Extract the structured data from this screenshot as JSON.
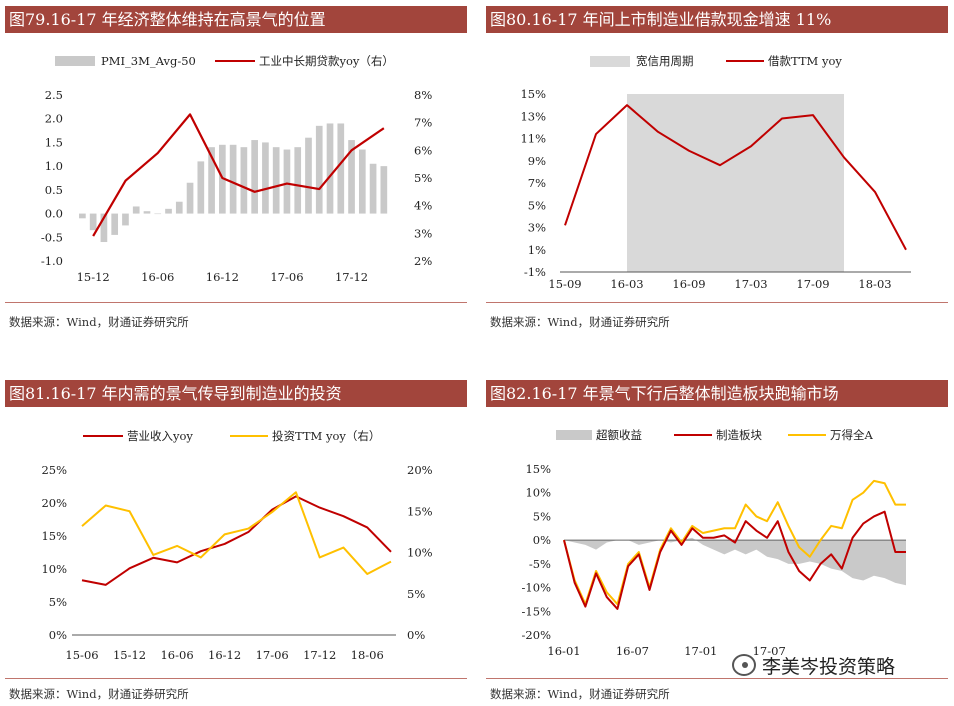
{
  "panels": [
    {
      "title": "图79.16-17 年经济整体维持在高景气的位置",
      "source": "数据来源：Wind，财通证券研究所",
      "chart_data": {
        "type": "bar+line",
        "x": [
          "2015-11",
          "2015-12",
          "2016-01",
          "2016-02",
          "2016-03",
          "2016-04",
          "2016-05",
          "2016-06",
          "2016-07",
          "2016-08",
          "2016-09",
          "2016-10",
          "2016-11",
          "2016-12",
          "2017-01",
          "2017-02",
          "2017-03",
          "2017-04",
          "2017-05",
          "2017-06",
          "2017-07",
          "2017-08",
          "2017-09",
          "2017-10",
          "2017-11",
          "2017-12",
          "2018-01",
          "2018-02",
          "2018-03",
          "2018-04"
        ],
        "x_ticks": [
          "15-12",
          "16-06",
          "16-12",
          "17-06",
          "17-12"
        ],
        "left_axis": {
          "ticks": [
            "-1.0",
            "-0.5",
            "0.0",
            "0.5",
            "1.0",
            "1.5",
            "2.0",
            "2.5"
          ],
          "ylim": [
            -1.0,
            2.5
          ]
        },
        "right_axis": {
          "ticks": [
            "2%",
            "3%",
            "4%",
            "5%",
            "6%",
            "7%",
            "8%"
          ],
          "ylim": [
            2,
            8
          ]
        },
        "series": [
          {
            "name": "PMI_3M_Avg-50",
            "kind": "bar",
            "axis": "left",
            "color": "#c9c9c9",
            "values": [
              -0.1,
              -0.35,
              -0.6,
              -0.45,
              -0.25,
              0.15,
              0.05,
              0.0,
              0.1,
              0.25,
              0.65,
              1.1,
              1.4,
              1.45,
              1.45,
              1.4,
              1.55,
              1.5,
              1.4,
              1.35,
              1.4,
              1.6,
              1.85,
              1.9,
              1.9,
              1.55,
              1.35,
              1.05,
              1.0,
              null
            ]
          },
          {
            "name": "工业中长期贷款yoy（右）",
            "kind": "line",
            "axis": "right",
            "color": "#c00000",
            "x": [
              "2015-12",
              "2016-03",
              "2016-06",
              "2016-09",
              "2016-12",
              "2017-03",
              "2017-06",
              "2017-09",
              "2017-12",
              "2018-03"
            ],
            "values": [
              2.9,
              4.9,
              5.9,
              7.3,
              5.0,
              4.5,
              4.8,
              4.6,
              6.0,
              6.8
            ]
          }
        ]
      }
    },
    {
      "title": "图80.16-17 年间上市制造业借款现金增速 11%",
      "source": "数据来源：Wind，财通证券研究所",
      "chart_data": {
        "type": "line",
        "x": [
          "2015-09",
          "2015-12",
          "2016-03",
          "2016-06",
          "2016-09",
          "2016-12",
          "2017-03",
          "2017-06",
          "2017-09",
          "2017-12",
          "2018-03",
          "2018-06"
        ],
        "x_ticks": [
          "15-09",
          "16-03",
          "16-09",
          "17-03",
          "17-09",
          "18-03"
        ],
        "y_ticks": [
          "-1%",
          "1%",
          "3%",
          "5%",
          "7%",
          "9%",
          "11%",
          "13%",
          "15%"
        ],
        "ylim": [
          -1,
          15
        ],
        "shade": {
          "name": "宽信用周期",
          "from": "2016-03",
          "to": "2017-12",
          "color": "#d9d9d9"
        },
        "series": [
          {
            "name": "借款TTM yoy",
            "color": "#c00000",
            "values": [
              3.2,
              11.4,
              14.0,
              11.6,
              9.9,
              8.6,
              10.3,
              12.8,
              13.1,
              9.3,
              6.2,
              1.0
            ]
          }
        ]
      }
    },
    {
      "title": "图81.16-17 年内需的景气传导到制造业的投资",
      "source": "数据来源：Wind，财通证券研究所",
      "chart_data": {
        "type": "line",
        "x": [
          "2015-06",
          "2015-09",
          "2015-12",
          "2016-03",
          "2016-06",
          "2016-09",
          "2016-12",
          "2017-03",
          "2017-06",
          "2017-09",
          "2017-12",
          "2018-03",
          "2018-06",
          "2018-09"
        ],
        "x_ticks": [
          "15-06",
          "15-12",
          "16-06",
          "16-12",
          "17-06",
          "17-12",
          "18-06"
        ],
        "left_axis": {
          "ticks": [
            "0%",
            "5%",
            "10%",
            "15%",
            "20%",
            "25%"
          ],
          "ylim": [
            0,
            25
          ]
        },
        "right_axis": {
          "ticks": [
            "0%",
            "5%",
            "10%",
            "15%",
            "20%"
          ],
          "ylim": [
            0,
            20
          ]
        },
        "series": [
          {
            "name": "营业收入yoy",
            "axis": "left",
            "color": "#c00000",
            "values": [
              8.3,
              7.6,
              10.1,
              11.7,
              11.0,
              12.7,
              13.8,
              15.6,
              19.0,
              21.0,
              19.3,
              18.0,
              16.3,
              12.6
            ]
          },
          {
            "name": "投资TTM yoy（右）",
            "axis": "right",
            "color": "#ffc000",
            "values": [
              13.2,
              15.7,
              15.0,
              9.7,
              10.8,
              9.4,
              12.2,
              12.9,
              14.9,
              17.3,
              9.4,
              10.6,
              7.4,
              8.9
            ]
          }
        ]
      }
    },
    {
      "title": "图82.16-17 年景气下行后整体制造板块跑输市场",
      "source": "数据来源：Wind，财通证券研究所",
      "chart_data": {
        "type": "line+area",
        "x_ticks": [
          "16-01",
          "16-07",
          "17-01",
          "17-07"
        ],
        "x_range": [
          "2016-01",
          "2018-07"
        ],
        "y_ticks": [
          "-20%",
          "-15%",
          "-10%",
          "-5%",
          "0%",
          "5%",
          "10%",
          "15%"
        ],
        "ylim": [
          -20,
          15
        ],
        "series": [
          {
            "name": "超额收益",
            "kind": "area",
            "color": "#c9c9c9",
            "values": [
              0.0,
              -0.5,
              -1.0,
              -2.0,
              -0.5,
              0.0,
              0.0,
              -1.0,
              -0.5,
              0.0,
              -0.5,
              0.0,
              0.5,
              -1.0,
              -2.0,
              -3.0,
              -2.0,
              -3.0,
              -2.0,
              -3.5,
              -4.0,
              -5.0,
              -5.0,
              -4.5,
              -5.0,
              -6.0,
              -6.5,
              -8.0,
              -8.5,
              -7.5,
              -8.0,
              -9.0,
              -9.5
            ]
          },
          {
            "name": "制造板块",
            "kind": "line",
            "color": "#c00000",
            "values": [
              0.0,
              -9.0,
              -14.0,
              -7.0,
              -12.0,
              -14.5,
              -5.5,
              -3.0,
              -10.5,
              -2.5,
              2.0,
              -1.0,
              2.5,
              0.5,
              0.5,
              1.0,
              -0.5,
              4.0,
              2.0,
              0.5,
              4.0,
              -2.5,
              -6.5,
              -8.5,
              -5.0,
              -3.0,
              -6.0,
              0.5,
              3.5,
              5.0,
              6.0,
              -2.5,
              -2.5
            ]
          },
          {
            "name": "万得全A",
            "kind": "line",
            "color": "#ffc000",
            "values": [
              0.0,
              -8.5,
              -13.5,
              -6.5,
              -11.0,
              -13.5,
              -5.0,
              -2.5,
              -10.0,
              -2.0,
              2.5,
              -0.5,
              3.0,
              1.5,
              2.0,
              2.5,
              2.5,
              7.5,
              5.0,
              4.0,
              8.0,
              3.0,
              -1.5,
              -3.5,
              0.0,
              3.0,
              2.5,
              8.5,
              10.0,
              12.5,
              12.0,
              7.5,
              7.5
            ]
          }
        ]
      }
    }
  ],
  "watermark": "李美岑投资策略"
}
